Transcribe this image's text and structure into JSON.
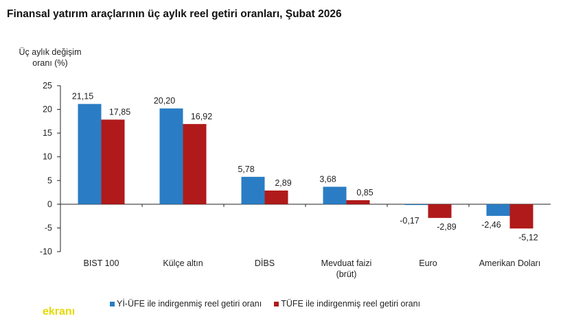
{
  "chart_data": {
    "type": "bar",
    "title": "Finansal yatırım araçlarının üç aylık reel getiri oranları, Şubat 2026",
    "ylabel_lines": [
      "Üç aylık değişim",
      "oranı (%)"
    ],
    "xlabel": "",
    "ylim": [
      -10,
      25
    ],
    "yticks": [
      25,
      20,
      15,
      10,
      5,
      0,
      -5,
      -10
    ],
    "categories": [
      [
        "BIST 100"
      ],
      [
        "Külçe altın"
      ],
      [
        "DİBS"
      ],
      [
        "Mevduat faizi",
        "(brüt)"
      ],
      [
        "Euro"
      ],
      [
        "Amerikan Doları"
      ]
    ],
    "series": [
      {
        "name": "Yİ-ÜFE ile indirgenmiş reel getiri oranı",
        "color": "#2a7dc4",
        "values": [
          21.15,
          20.2,
          5.78,
          3.68,
          -0.17,
          -2.46
        ],
        "labels": [
          "21,15",
          "20,20",
          "5,78",
          "3,68",
          "-0,17",
          "-2,46"
        ]
      },
      {
        "name": "TÜFE ile indirgenmiş reel getiri oranı",
        "color": "#b01a1a",
        "values": [
          17.85,
          16.92,
          2.89,
          0.85,
          -2.89,
          -5.12
        ],
        "labels": [
          "17,85",
          "16,92",
          "2,89",
          "0,85",
          "-2,89",
          "-5,12"
        ]
      }
    ],
    "legend_position": "bottom",
    "grid": false
  },
  "watermark": "ekranı"
}
